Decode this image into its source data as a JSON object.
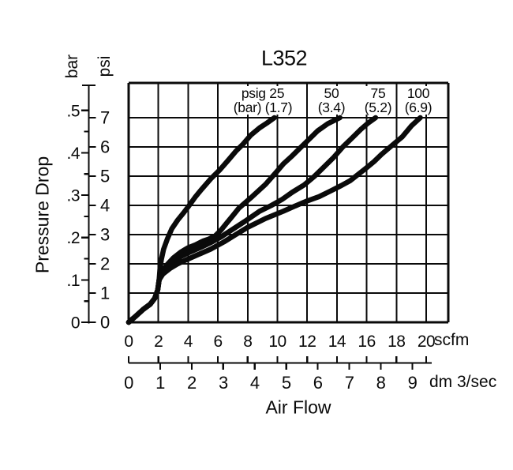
{
  "page": {
    "background": "#ffffff",
    "ink_color": "#0a0a0a"
  },
  "chart_data": {
    "type": "line",
    "title": "L352",
    "grid": true,
    "legend_position": "labels-above-curves",
    "x_axis": {
      "label": "Air Flow",
      "primary": {
        "unit": "scfm",
        "ticks": [
          0,
          2,
          4,
          6,
          8,
          10,
          12,
          14,
          16,
          18,
          20
        ],
        "range": [
          0,
          21.5
        ]
      },
      "secondary": {
        "unit": "dm 3/sec",
        "ticks": [
          0,
          1,
          2,
          3,
          4,
          5,
          6,
          7,
          8,
          9
        ],
        "scfm_per_unit": 2.1189
      }
    },
    "y_axis": {
      "label": "Pressure Drop",
      "primary": {
        "unit": "psi",
        "ticks": [
          0,
          1,
          2,
          3,
          4,
          5,
          6,
          7
        ],
        "range": [
          0,
          8.2
        ]
      },
      "secondary": {
        "unit": "bar",
        "tick_labels": [
          "0",
          ".1",
          ".2",
          ".3",
          ".4",
          ".5"
        ],
        "tick_values": [
          0,
          0.1,
          0.2,
          0.3,
          0.4,
          0.5
        ],
        "minor_step": 0.05,
        "psi_per_unit": 14.5
      }
    },
    "series": [
      {
        "name": "psig 25",
        "inlet_pressure_psig": 25,
        "inlet_pressure_bar": 1.7,
        "label_line1": "psig 25",
        "label_line2": "(bar) (1.7)",
        "label_cx": 333,
        "points": [
          [
            0,
            0
          ],
          [
            0.5,
            0.22
          ],
          [
            1.0,
            0.45
          ],
          [
            1.45,
            0.62
          ],
          [
            1.75,
            0.82
          ],
          [
            1.95,
            1.1
          ],
          [
            2.05,
            1.45
          ],
          [
            2.1,
            1.8
          ],
          [
            2.2,
            2.15
          ],
          [
            2.35,
            2.5
          ],
          [
            2.6,
            2.85
          ],
          [
            2.9,
            3.2
          ],
          [
            3.3,
            3.5
          ],
          [
            3.7,
            3.75
          ],
          [
            4.0,
            3.95
          ],
          [
            4.5,
            4.3
          ],
          [
            4.9,
            4.55
          ],
          [
            5.5,
            4.9
          ],
          [
            6.1,
            5.2
          ],
          [
            6.7,
            5.55
          ],
          [
            7.2,
            5.85
          ],
          [
            7.7,
            6.1
          ],
          [
            8.2,
            6.4
          ],
          [
            8.8,
            6.65
          ],
          [
            9.3,
            6.82
          ],
          [
            9.8,
            7.0
          ]
        ]
      },
      {
        "name": "50",
        "inlet_pressure_psig": 50,
        "inlet_pressure_bar": 3.4,
        "label_line1": "50",
        "label_line2": "(3.4)",
        "label_cx": 420,
        "points": [
          [
            0,
            0
          ],
          [
            0.5,
            0.22
          ],
          [
            1.0,
            0.45
          ],
          [
            1.45,
            0.62
          ],
          [
            1.75,
            0.82
          ],
          [
            1.95,
            1.1
          ],
          [
            2.05,
            1.45
          ],
          [
            2.2,
            1.72
          ],
          [
            2.6,
            1.98
          ],
          [
            3.0,
            2.2
          ],
          [
            3.5,
            2.4
          ],
          [
            4.0,
            2.55
          ],
          [
            4.5,
            2.65
          ],
          [
            5.0,
            2.78
          ],
          [
            5.4,
            2.85
          ],
          [
            5.8,
            2.95
          ],
          [
            6.2,
            3.15
          ],
          [
            6.6,
            3.4
          ],
          [
            7.0,
            3.65
          ],
          [
            7.4,
            3.9
          ],
          [
            8.3,
            4.3
          ],
          [
            9.2,
            4.72
          ],
          [
            10.0,
            5.18
          ],
          [
            10.4,
            5.42
          ],
          [
            11.0,
            5.7
          ],
          [
            11.5,
            5.95
          ],
          [
            12.1,
            6.25
          ],
          [
            12.7,
            6.55
          ],
          [
            13.4,
            6.8
          ],
          [
            14.2,
            7.0
          ]
        ]
      },
      {
        "name": "75",
        "inlet_pressure_psig": 75,
        "inlet_pressure_bar": 5.2,
        "label_line1": "75",
        "label_line2": "(5.2)",
        "label_cx": 479,
        "points": [
          [
            0,
            0
          ],
          [
            0.5,
            0.22
          ],
          [
            1.0,
            0.45
          ],
          [
            1.45,
            0.62
          ],
          [
            1.75,
            0.82
          ],
          [
            1.95,
            1.1
          ],
          [
            2.05,
            1.45
          ],
          [
            2.25,
            1.68
          ],
          [
            2.7,
            1.9
          ],
          [
            3.2,
            2.1
          ],
          [
            3.5,
            2.25
          ],
          [
            4.2,
            2.42
          ],
          [
            5.0,
            2.6
          ],
          [
            5.6,
            2.75
          ],
          [
            6.2,
            2.92
          ],
          [
            6.8,
            3.12
          ],
          [
            7.8,
            3.45
          ],
          [
            8.8,
            3.8
          ],
          [
            9.6,
            4.0
          ],
          [
            10.3,
            4.2
          ],
          [
            11.0,
            4.45
          ],
          [
            11.8,
            4.7
          ],
          [
            12.5,
            5.0
          ],
          [
            13.1,
            5.3
          ],
          [
            13.8,
            5.65
          ],
          [
            14.4,
            6.0
          ],
          [
            15.0,
            6.3
          ],
          [
            15.6,
            6.6
          ],
          [
            16.1,
            6.82
          ],
          [
            16.6,
            7.0
          ]
        ]
      },
      {
        "name": "100",
        "inlet_pressure_psig": 100,
        "inlet_pressure_bar": 6.9,
        "label_line1": "100",
        "label_line2": "(6.9)",
        "label_cx": 530,
        "points": [
          [
            0,
            0
          ],
          [
            0.5,
            0.22
          ],
          [
            1.0,
            0.45
          ],
          [
            1.45,
            0.62
          ],
          [
            1.75,
            0.82
          ],
          [
            1.95,
            1.1
          ],
          [
            2.05,
            1.45
          ],
          [
            2.3,
            1.65
          ],
          [
            2.8,
            1.85
          ],
          [
            3.3,
            2.0
          ],
          [
            3.8,
            2.12
          ],
          [
            4.6,
            2.3
          ],
          [
            5.5,
            2.5
          ],
          [
            6.4,
            2.75
          ],
          [
            7.2,
            3.0
          ],
          [
            8.0,
            3.25
          ],
          [
            9.2,
            3.55
          ],
          [
            10.4,
            3.8
          ],
          [
            11.2,
            3.98
          ],
          [
            12.0,
            4.15
          ],
          [
            12.8,
            4.3
          ],
          [
            13.6,
            4.5
          ],
          [
            14.3,
            4.68
          ],
          [
            14.9,
            4.85
          ],
          [
            15.4,
            5.05
          ],
          [
            15.9,
            5.25
          ],
          [
            16.5,
            5.5
          ],
          [
            17.0,
            5.75
          ],
          [
            17.7,
            6.05
          ],
          [
            18.4,
            6.35
          ],
          [
            19.0,
            6.72
          ],
          [
            19.6,
            7.0
          ]
        ]
      }
    ]
  }
}
